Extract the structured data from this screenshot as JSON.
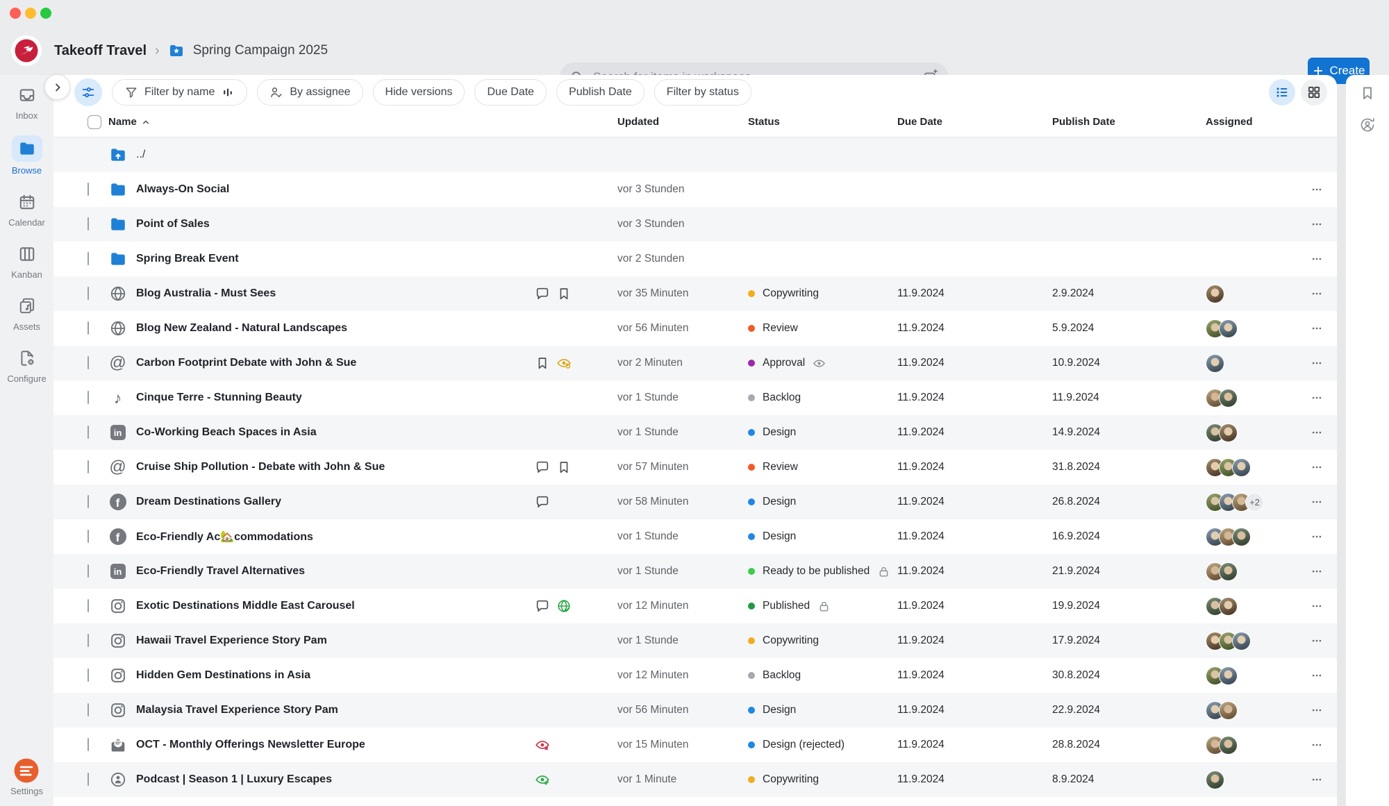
{
  "header": {
    "breadcrumb": {
      "workspace": "Takeoff Travel",
      "current": "Spring Campaign 2025"
    },
    "search_placeholder": "Search for items in workspace",
    "create_label": "Create"
  },
  "colors": {
    "accent_blue": "#1273d2",
    "folder_blue": "#1f80d6",
    "active_tint": "#d9eafb",
    "row_alt": "#f5f6f7",
    "settings_orange": "#e85f2d",
    "logo_red": "#c81f3c"
  },
  "sidebar": {
    "items": [
      {
        "id": "inbox",
        "label": "Inbox",
        "icon": "inbox",
        "active": false
      },
      {
        "id": "browse",
        "label": "Browse",
        "icon": "folder-blue",
        "active": true
      },
      {
        "id": "calendar",
        "label": "Calendar",
        "icon": "calendar",
        "active": false
      },
      {
        "id": "kanban",
        "label": "Kanban",
        "icon": "kanban",
        "active": false
      },
      {
        "id": "assets",
        "label": "Assets",
        "icon": "assets",
        "active": false
      },
      {
        "id": "configure",
        "label": "Configure",
        "icon": "configure",
        "active": false
      }
    ],
    "settings_label": "Settings"
  },
  "filterbar": {
    "pills": [
      {
        "id": "filter-by-name",
        "label": "Filter by name",
        "lead": "funnel",
        "trail": "sort-bars"
      },
      {
        "id": "by-assignee",
        "label": "By assignee",
        "lead": "person-check"
      },
      {
        "id": "hide-versions",
        "label": "Hide versions"
      },
      {
        "id": "due-date",
        "label": "Due Date"
      },
      {
        "id": "publish-date",
        "label": "Publish Date"
      },
      {
        "id": "filter-by-status",
        "label": "Filter by status"
      }
    ]
  },
  "table": {
    "columns": [
      "Name",
      "Updated",
      "Status",
      "Due Date",
      "Publish Date",
      "Assigned"
    ],
    "rows": [
      {
        "name": "../",
        "channel": "folder-up",
        "checkbox": false,
        "menu": false
      },
      {
        "name": "Always-On Social",
        "channel": "folder",
        "updated": "vor 3 Stunden",
        "checkbox": true,
        "menu": true
      },
      {
        "name": "Point of Sales",
        "channel": "folder",
        "updated": "vor 3 Stunden",
        "checkbox": true,
        "menu": true
      },
      {
        "name": "Spring Break Event",
        "channel": "folder",
        "updated": "vor 2 Stunden",
        "checkbox": true,
        "menu": true
      },
      {
        "name": "Blog Australia - Must Sees",
        "channel": "blog",
        "badges": [
          "comment",
          "bookmark"
        ],
        "updated": "vor 35 Minuten",
        "status": {
          "label": "Copywriting",
          "color": "#f0ad1e"
        },
        "due": "11.9.2024",
        "publish": "2.9.2024",
        "avatars": 1,
        "checkbox": true,
        "menu": true
      },
      {
        "name": "Blog New Zealand - Natural Landscapes",
        "channel": "blog",
        "updated": "vor 56 Minuten",
        "status": {
          "label": "Review",
          "color": "#f25a29"
        },
        "due": "11.9.2024",
        "publish": "5.9.2024",
        "avatars": 2,
        "checkbox": true,
        "menu": true
      },
      {
        "name": "Carbon Footprint Debate with John & Sue",
        "channel": "threads",
        "badges": [
          "bookmark",
          "eye-sync"
        ],
        "updated": "vor 2 Minuten",
        "status": {
          "label": "Approval",
          "color": "#9c27b0",
          "icon": "eye"
        },
        "due": "11.9.2024",
        "publish": "10.9.2024",
        "avatars": 1,
        "checkbox": true,
        "menu": true
      },
      {
        "name": "Cinque Terre - Stunning Beauty",
        "channel": "tiktok",
        "updated": "vor 1 Stunde",
        "status": {
          "label": "Backlog",
          "color": "#a6a9ad"
        },
        "due": "11.9.2024",
        "publish": "11.9.2024",
        "avatars": 2,
        "checkbox": true,
        "menu": true
      },
      {
        "name": "Co-Working Beach Spaces in Asia",
        "channel": "linkedin",
        "updated": "vor 1 Stunde",
        "status": {
          "label": "Design",
          "color": "#1e88e5"
        },
        "due": "11.9.2024",
        "publish": "14.9.2024",
        "avatars": 2,
        "checkbox": true,
        "menu": true
      },
      {
        "name": "Cruise Ship Pollution - Debate with John & Sue",
        "channel": "threads",
        "badges": [
          "comment",
          "bookmark"
        ],
        "updated": "vor 57 Minuten",
        "status": {
          "label": "Review",
          "color": "#f25a29"
        },
        "due": "11.9.2024",
        "publish": "31.8.2024",
        "avatars": 3,
        "checkbox": true,
        "menu": true
      },
      {
        "name": "Dream Destinations Gallery",
        "channel": "facebook",
        "badges": [
          "comment"
        ],
        "updated": "vor 58 Minuten",
        "status": {
          "label": "Design",
          "color": "#1e88e5"
        },
        "due": "11.9.2024",
        "publish": "26.8.2024",
        "avatars": 3,
        "avatars_extra": "+2",
        "checkbox": true,
        "menu": true
      },
      {
        "name": "Eco-Friendly Ac🏡commodations",
        "channel": "facebook",
        "updated": "vor 1 Stunde",
        "status": {
          "label": "Design",
          "color": "#1e88e5"
        },
        "due": "11.9.2024",
        "publish": "16.9.2024",
        "avatars": 3,
        "checkbox": true,
        "menu": true
      },
      {
        "name": "Eco-Friendly Travel Alternatives",
        "channel": "linkedin",
        "updated": "vor 1 Stunde",
        "status": {
          "label": "Ready to be published",
          "color": "#3ecb4e",
          "icon": "lock"
        },
        "due": "11.9.2024",
        "publish": "21.9.2024",
        "avatars": 2,
        "checkbox": true,
        "menu": true
      },
      {
        "name": "Exotic Destinations Middle East Carousel",
        "channel": "instagram",
        "badges": [
          "comment",
          "globe-check"
        ],
        "updated": "vor 12 Minuten",
        "status": {
          "label": "Published",
          "color": "#1e9a43",
          "icon": "lock"
        },
        "due": "11.9.2024",
        "publish": "19.9.2024",
        "avatars": 2,
        "checkbox": true,
        "menu": true
      },
      {
        "name": "Hawaii Travel Experience Story Pam",
        "channel": "instagram",
        "updated": "vor 1 Stunde",
        "status": {
          "label": "Copywriting",
          "color": "#f0ad1e"
        },
        "due": "11.9.2024",
        "publish": "17.9.2024",
        "avatars": 3,
        "checkbox": true,
        "menu": true
      },
      {
        "name": "Hidden Gem Destinations in Asia",
        "channel": "instagram",
        "updated": "vor 12 Minuten",
        "status": {
          "label": "Backlog",
          "color": "#a6a9ad"
        },
        "due": "11.9.2024",
        "publish": "30.8.2024",
        "avatars": 2,
        "checkbox": true,
        "menu": true
      },
      {
        "name": "Malaysia Travel Experience Story Pam",
        "channel": "instagram",
        "updated": "vor 56 Minuten",
        "status": {
          "label": "Design",
          "color": "#1e88e5"
        },
        "due": "11.9.2024",
        "publish": "22.9.2024",
        "avatars": 2,
        "checkbox": true,
        "menu": true
      },
      {
        "name": "OCT - Monthly Offerings Newsletter Europe",
        "channel": "newsletter",
        "badges": [
          "eye-x"
        ],
        "updated": "vor 15 Minuten",
        "status": {
          "label": "Design (rejected)",
          "color": "#1e88e5"
        },
        "due": "11.9.2024",
        "publish": "28.8.2024",
        "avatars": 2,
        "checkbox": true,
        "menu": true
      },
      {
        "name": "Podcast | Season 1 | Luxury Escapes",
        "channel": "podcast",
        "badges": [
          "eye-check"
        ],
        "updated": "vor 1 Minute",
        "status": {
          "label": "Copywriting",
          "color": "#f0ad1e"
        },
        "due": "11.9.2024",
        "publish": "8.9.2024",
        "avatars": 1,
        "checkbox": true,
        "menu": true
      }
    ]
  }
}
